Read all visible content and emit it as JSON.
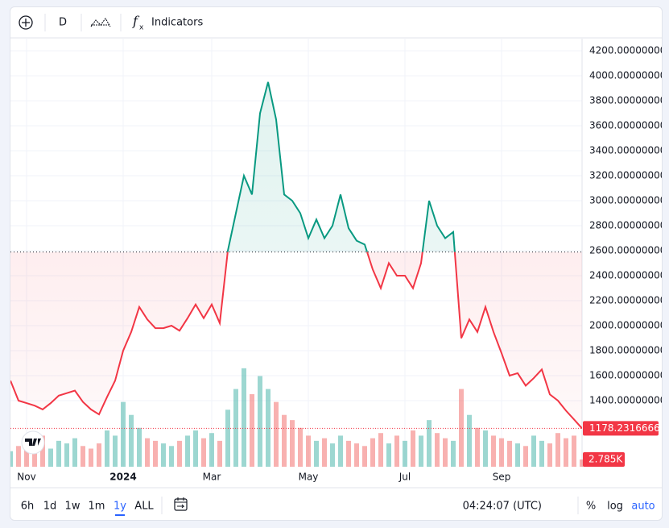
{
  "toolbar": {
    "interval": "D",
    "indicators": "Indicators"
  },
  "chart_data": {
    "type": "baseline",
    "categories": [
      null,
      null,
      "Nov",
      null,
      null,
      null,
      null,
      null,
      null,
      null,
      null,
      null,
      null,
      null,
      "2024",
      null,
      null,
      null,
      null,
      null,
      null,
      null,
      null,
      null,
      null,
      "Mar",
      null,
      null,
      null,
      null,
      null,
      null,
      null,
      null,
      null,
      null,
      null,
      "May",
      null,
      null,
      null,
      null,
      null,
      null,
      null,
      null,
      null,
      null,
      null,
      "Jul",
      null,
      null,
      null,
      null,
      null,
      null,
      null,
      null,
      null,
      null,
      null,
      "Sep",
      null,
      null,
      null,
      null,
      null,
      null,
      null,
      null,
      null,
      null
    ],
    "values": [
      1560,
      1400,
      1380,
      1360,
      1330,
      1380,
      1440,
      1460,
      1480,
      1390,
      1330,
      1290,
      1430,
      1560,
      1800,
      1950,
      2150,
      2050,
      1980,
      1980,
      2000,
      1960,
      2060,
      2170,
      2060,
      2170,
      2020,
      2600,
      2900,
      3200,
      3050,
      3700,
      3950,
      3650,
      3050,
      3000,
      2900,
      2700,
      2850,
      2700,
      2800,
      3050,
      2780,
      2680,
      2650,
      2450,
      2300,
      2500,
      2400,
      2400,
      2300,
      2500,
      3000,
      2800,
      2700,
      2750,
      1900,
      2050,
      1950,
      2150,
      1950,
      1780,
      1600,
      1620,
      1520,
      1580,
      1650,
      1450,
      1400,
      1320,
      1250,
      1178.23166667
    ],
    "baseline": 2590,
    "ylim": [
      871,
      4297
    ],
    "yticks": [
      {
        "value": 1400,
        "label": "1400.00000000"
      },
      {
        "value": 1600,
        "label": "1600.00000000"
      },
      {
        "value": 1800,
        "label": "1800.00000000"
      },
      {
        "value": 2000,
        "label": "2000.00000000"
      },
      {
        "value": 2200,
        "label": "2200.00000000"
      },
      {
        "value": 2400,
        "label": "2400.00000000"
      },
      {
        "value": 2600,
        "label": "2600.00000000"
      },
      {
        "value": 2800,
        "label": "2800.00000000"
      },
      {
        "value": 3000,
        "label": "3000.00000000"
      },
      {
        "value": 3200,
        "label": "3200.00000000"
      },
      {
        "value": 3400,
        "label": "3400.00000000"
      },
      {
        "value": 3600,
        "label": "3600.00000000"
      },
      {
        "value": 3800,
        "label": "3800.00000000"
      },
      {
        "value": 4000,
        "label": "4000.00000000"
      },
      {
        "value": 4200,
        "label": "4200.00000000"
      }
    ],
    "grid": true,
    "colors": {
      "above": "#089981",
      "below": "#f23645"
    },
    "volume": {
      "values": [
        6,
        8,
        10,
        9,
        12,
        7,
        10,
        9,
        11,
        8,
        7,
        9,
        14,
        12,
        25,
        20,
        15,
        11,
        10,
        9,
        8,
        10,
        12,
        14,
        11,
        13,
        10,
        22,
        30,
        38,
        28,
        35,
        30,
        25,
        20,
        18,
        15,
        12,
        10,
        11,
        9,
        12,
        10,
        9,
        8,
        11,
        13,
        9,
        12,
        10,
        14,
        12,
        18,
        13,
        11,
        10,
        30,
        20,
        15,
        14,
        12,
        11,
        10,
        9,
        8,
        12,
        10,
        9,
        13,
        11,
        12,
        2.785
      ],
      "ylim": [
        0,
        42
      ],
      "last_label": "2.785K",
      "colors": {
        "up": "rgba(38,166,154,0.45)",
        "down": "rgba(239,83,80,0.45)"
      }
    }
  },
  "bottombar": {
    "ranges": [
      "6h",
      "1d",
      "1w",
      "1m",
      "1y",
      "ALL"
    ],
    "active": 4,
    "time": "04:24:07 (UTC)",
    "percent": "%",
    "log": "log",
    "auto": "auto"
  }
}
